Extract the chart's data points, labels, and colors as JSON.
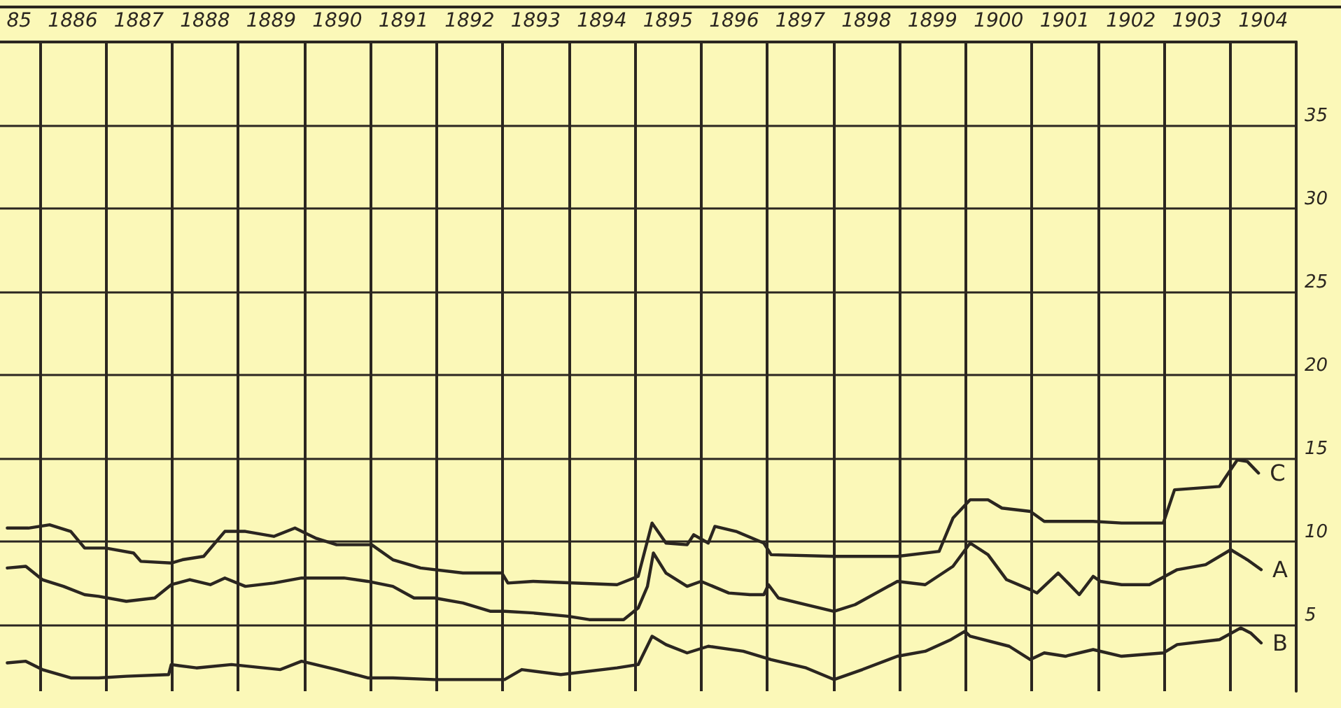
{
  "chart_data": {
    "type": "line",
    "xlim": [
      1884.9,
      1904.5
    ],
    "xticks": [
      {
        "value": 1885,
        "label": "85"
      },
      1886,
      1887,
      1888,
      1889,
      1890,
      1891,
      1892,
      1893,
      1894,
      1895,
      1896,
      1897,
      1898,
      1899,
      1900,
      1901,
      1902,
      1903,
      1904,
      {
        "value": 1885.5,
        "label": null
      },
      {
        "value": 1886.5,
        "label": null
      },
      {
        "value": 1887.5,
        "label": null
      },
      {
        "value": 1888.5,
        "label": null
      },
      {
        "value": 1889.5,
        "label": null
      },
      {
        "value": 1890.5,
        "label": null
      },
      {
        "value": 1891.5,
        "label": null
      },
      {
        "value": 1892.5,
        "label": null
      },
      {
        "value": 1893.5,
        "label": null
      },
      {
        "value": 1894.5,
        "label": null
      },
      {
        "value": 1895.5,
        "label": null
      },
      {
        "value": 1896.5,
        "label": null
      },
      {
        "value": 1897.5,
        "label": null
      },
      {
        "value": 1898.5,
        "label": null
      },
      {
        "value": 1899.5,
        "label": null
      },
      {
        "value": 1900.5,
        "label": null
      },
      {
        "value": 1901.5,
        "label": null
      },
      {
        "value": 1902.5,
        "label": null
      },
      {
        "value": 1903.5,
        "label": null
      },
      {
        "value": 1904.5,
        "label": null
      }
    ],
    "ylim": [
      1,
      40
    ],
    "yticks": [
      5,
      10,
      15,
      20,
      25,
      30,
      35
    ],
    "grid": true,
    "legend": false,
    "marker": "none",
    "line_style": "solid",
    "series": [
      {
        "name": "C",
        "color": "#2b2620",
        "x": [
          1885.01,
          1885.33,
          1885.65,
          1885.97,
          1886.18,
          1886.5,
          1886.92,
          1887.03,
          1887.49,
          1887.66,
          1887.98,
          1888.3,
          1888.61,
          1889.04,
          1889.36,
          1889.67,
          1889.99,
          1890.52,
          1890.84,
          1891.26,
          1891.9,
          1892.49,
          1892.58,
          1892.96,
          1894.23,
          1894.55,
          1894.76,
          1894.97,
          1895.29,
          1895.39,
          1895.61,
          1895.71,
          1896.03,
          1896.45,
          1896.56,
          1897.51,
          1898.47,
          1899.1,
          1899.31,
          1899.57,
          1899.84,
          1900.05,
          1900.48,
          1900.69,
          1901.43,
          1901.86,
          1902.49,
          1902.66,
          1903.34,
          1903.44,
          1903.61,
          1903.76,
          1903.93
        ],
        "values": [
          10.8,
          10.8,
          11,
          10.6,
          9.6,
          9.6,
          9.3,
          8.8,
          8.7,
          8.9,
          9.1,
          10.6,
          10.6,
          10.3,
          10.8,
          10.2,
          9.8,
          9.8,
          8.9,
          8.4,
          8.1,
          8.1,
          7.5,
          7.6,
          7.4,
          7.9,
          11.1,
          9.9,
          9.8,
          10.4,
          9.9,
          10.9,
          10.6,
          9.9,
          9.2,
          9.1,
          9.1,
          9.4,
          11.4,
          12.5,
          12.5,
          12,
          11.8,
          11.2,
          11.2,
          11.1,
          11.1,
          13.1,
          13.3,
          13.9,
          14.9,
          14.8,
          14.1
        ]
      },
      {
        "name": "A",
        "color": "#2b2620",
        "x": [
          1885.01,
          1885.29,
          1885.54,
          1885.86,
          1886.18,
          1886.39,
          1886.81,
          1887.24,
          1887.49,
          1887.77,
          1888.08,
          1888.3,
          1888.61,
          1889.04,
          1889.46,
          1890.1,
          1890.46,
          1890.84,
          1891.16,
          1891.47,
          1891.9,
          1892.32,
          1892.53,
          1892.96,
          1893.49,
          1893.81,
          1894.33,
          1894.55,
          1894.69,
          1894.78,
          1894.97,
          1895.29,
          1895.5,
          1895.92,
          1896.24,
          1896.45,
          1896.52,
          1896.67,
          1897.09,
          1897.51,
          1897.83,
          1898.47,
          1898.89,
          1899.31,
          1899.57,
          1899.84,
          1900.12,
          1900.48,
          1900.58,
          1900.9,
          1901.05,
          1901.22,
          1901.43,
          1901.54,
          1901.86,
          1902.28,
          1902.7,
          1903.13,
          1903.51,
          1903.76,
          1903.97
        ],
        "values": [
          8.4,
          8.5,
          7.7,
          7.3,
          6.8,
          6.7,
          6.4,
          6.6,
          7.4,
          7.7,
          7.4,
          7.8,
          7.3,
          7.5,
          7.8,
          7.8,
          7.6,
          7.3,
          6.6,
          6.6,
          6.3,
          5.8,
          5.8,
          5.7,
          5.5,
          5.3,
          5.3,
          6,
          7.3,
          9.3,
          8.1,
          7.3,
          7.6,
          6.9,
          6.8,
          6.8,
          7.4,
          6.6,
          6.2,
          5.8,
          6.2,
          7.6,
          7.4,
          8.5,
          9.9,
          9.2,
          7.7,
          7.1,
          6.9,
          8.1,
          7.5,
          6.8,
          7.9,
          7.6,
          7.4,
          7.4,
          8.3,
          8.6,
          9.5,
          8.9,
          8.3
        ]
      },
      {
        "name": "B",
        "color": "#2b2620",
        "x": [
          1885.01,
          1885.29,
          1885.54,
          1885.97,
          1886.39,
          1886.81,
          1887.45,
          1887.49,
          1887.87,
          1888.4,
          1889.14,
          1889.46,
          1889.99,
          1890.46,
          1890.84,
          1891.47,
          1892.53,
          1892.79,
          1893.38,
          1894.23,
          1894.55,
          1894.76,
          1894.97,
          1895.29,
          1895.61,
          1896.14,
          1896.56,
          1897.09,
          1897.51,
          1897.94,
          1898.47,
          1898.89,
          1899.28,
          1899.49,
          1899.57,
          1900.16,
          1900.48,
          1900.69,
          1901.01,
          1901.43,
          1901.86,
          1902.49,
          1902.7,
          1903.34,
          1903.66,
          1903.81,
          1903.97
        ],
        "values": [
          2.7,
          2.8,
          2.3,
          1.8,
          1.8,
          1.9,
          2,
          2.6,
          2.4,
          2.6,
          2.3,
          2.8,
          2.3,
          1.8,
          1.8,
          1.7,
          1.7,
          2.3,
          2,
          2.4,
          2.6,
          4.3,
          3.8,
          3.3,
          3.7,
          3.4,
          2.9,
          2.4,
          1.7,
          2.3,
          3.1,
          3.4,
          4.1,
          4.6,
          4.3,
          3.7,
          2.9,
          3.3,
          3.1,
          3.5,
          3.1,
          3.3,
          3.8,
          4.1,
          4.8,
          4.5,
          3.9
        ]
      }
    ]
  }
}
